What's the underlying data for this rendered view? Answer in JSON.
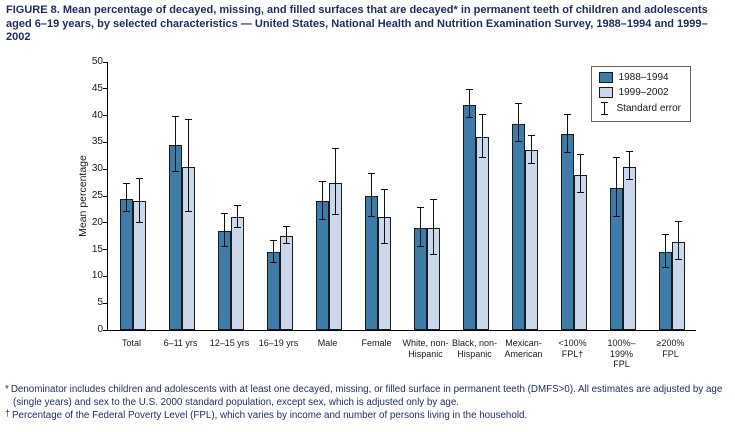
{
  "figure": {
    "title": "FIGURE 8. Mean percentage of decayed, missing, and filled surfaces that are decayed* in permanent teeth of children and adolescents aged 6–19 years, by selected characteristics — United States, National Health and Nutrition Examination Survey, 1988–1994 and 1999–2002"
  },
  "chart_data": {
    "type": "bar",
    "title": "",
    "xlabel": "",
    "ylabel": "Mean percentage",
    "ylim": [
      0,
      50
    ],
    "ytick_step": 5,
    "grid": false,
    "legend_position": "top-right",
    "categories": [
      "Total",
      "6–11 yrs",
      "12–15 yrs",
      "16–19 yrs",
      "Male",
      "Female",
      "White, non-\nHispanic",
      "Black, non-\nHispanic",
      "Mexican-\nAmerican",
      "<100%\nFPL†",
      "100%–199%\nFPL",
      "≥200%\nFPL"
    ],
    "series": [
      {
        "name": "1988–1994",
        "color": "#3d7ca8",
        "values": [
          24.5,
          34.5,
          18.5,
          14.5,
          24,
          25,
          19,
          42,
          38.5,
          36.5,
          26.5,
          14.5
        ],
        "errors": [
          2.5,
          5,
          3,
          2,
          3.5,
          4,
          3.5,
          2.5,
          3.5,
          3.5,
          5.5,
          3
        ]
      },
      {
        "name": "1999–2002",
        "color": "#cbd8eb",
        "values": [
          24,
          30.5,
          21,
          17.5,
          27.5,
          21,
          19,
          36,
          33.5,
          29,
          30.5,
          16.5
        ],
        "errors": [
          4,
          8.5,
          2,
          1.5,
          6,
          5,
          5,
          4,
          2.5,
          3.5,
          2.5,
          3.5
        ]
      }
    ],
    "legend": {
      "standard_error_label": "Standard error"
    }
  },
  "footnotes": [
    {
      "marker": "*",
      "text": "Denominator includes children and adolescents with at least one decayed, missing, or filled surface in permanent teeth (DMFS>0). All estimates are adjusted by age (single years) and sex to the U.S. 2000 standard population, except sex, which is adjusted only by age."
    },
    {
      "marker": "†",
      "text": "Percentage of the Federal Poverty Level (FPL), which varies by income and number of persons living in the household."
    }
  ]
}
